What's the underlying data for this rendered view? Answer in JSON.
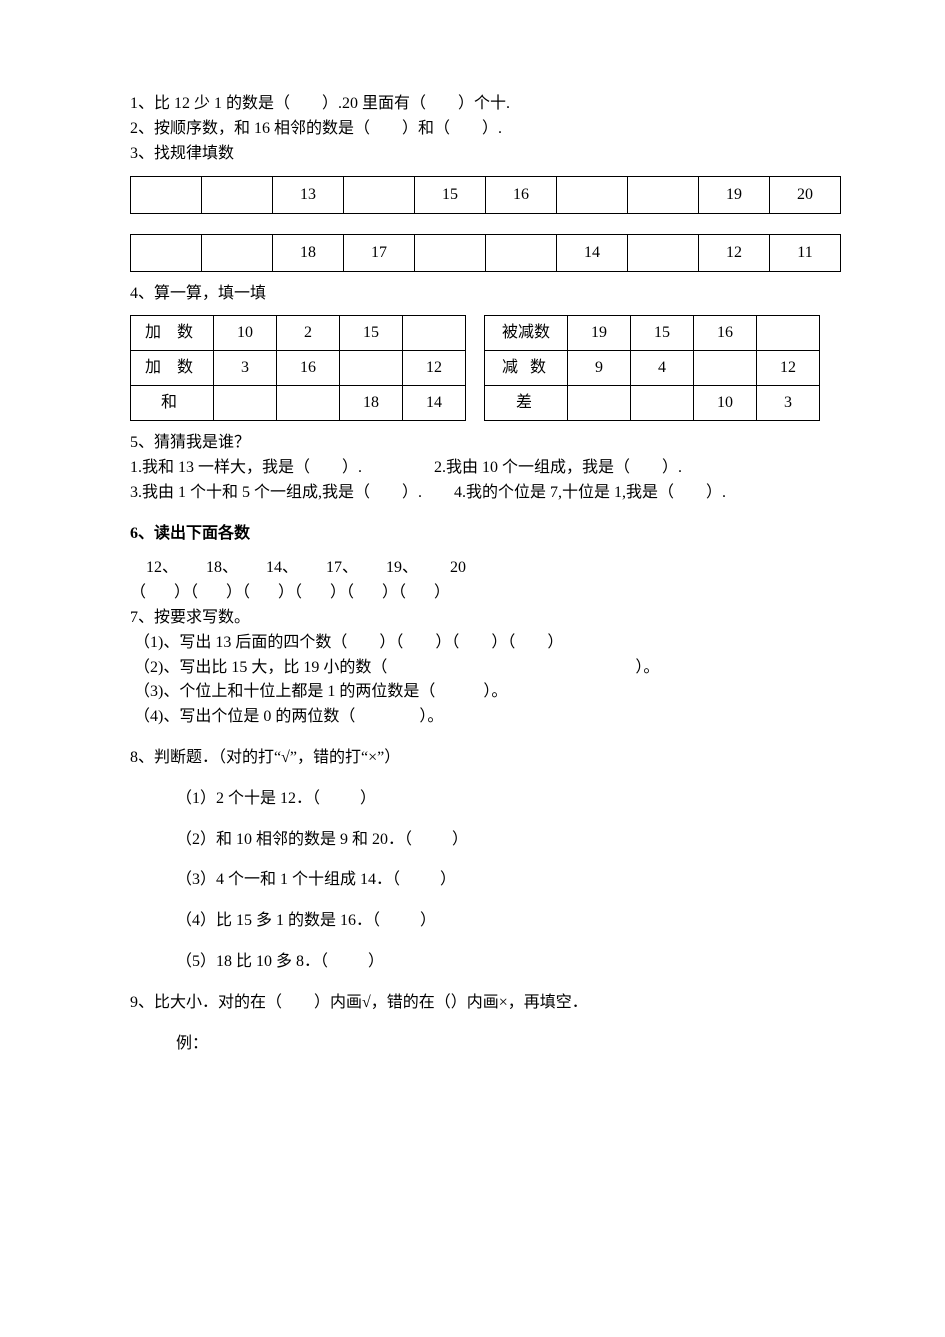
{
  "q1": "1、比 12 少 1 的数是（　　）.20 里面有（　　）个十.",
  "q2": "2、按顺序数，和 16 相邻的数是（　　）和（　　）.",
  "q3": "3、找规律填数",
  "seq1": [
    "",
    "",
    "13",
    "",
    "15",
    "16",
    "",
    "",
    "19",
    "20"
  ],
  "seq2": [
    "",
    "",
    "18",
    "17",
    "",
    "",
    "14",
    "",
    "12",
    "11"
  ],
  "q4": "4、算一算，填一填",
  "calcLeft": {
    "r0": [
      "加  数",
      "10",
      "2",
      "15",
      ""
    ],
    "r1": [
      "加  数",
      "3",
      "16",
      "",
      "12"
    ],
    "r2": [
      "和",
      "",
      "",
      "18",
      "14"
    ]
  },
  "calcRight": {
    "r0": [
      "被减数",
      "19",
      "15",
      "16",
      ""
    ],
    "r1": [
      "减  数",
      "9",
      "4",
      "",
      "12"
    ],
    "r2": [
      "差",
      "",
      "",
      "10",
      "3"
    ]
  },
  "q5": {
    "title": "5、猜猜我是谁？",
    "l1": "1.我和 13 一样大，我是（　　）.",
    "r1": "2.我由 10 个一组成，我是（　　）.",
    "l2": "3.我由 1 个十和 5 个一组成,我是（　　）.",
    "r2": "4.我的个位是 7,十位是 1,我是（　　）."
  },
  "q6": {
    "title": "6、读出下面各数",
    "nums": "    12、       18、       14、       17、       19、        20",
    "pars": "（       ）（       ）（       ）（       ）（       ）（       ）"
  },
  "q7": {
    "title": "7、按要求写数。",
    "a": "（1)、写出 13 后面的四个数（        ）（        ）（        ）（        ）",
    "b": "（2)、写出比 15 大，比 19 小的数（                                                              ）。",
    "c": "（3)、个位上和十位上都是 1 的两位数是（            ）。",
    "d": "（4)、写出个位是 0 的两位数（                ）。"
  },
  "q8": {
    "title": "8、判断题．（对的打“√”，错的打“×”）",
    "a": "（1）2 个十是 12．（          ）",
    "b": "（2）和 10 相邻的数是 9 和 20．（          ）",
    "c": "（3）4 个一和 1 个十组成 14．（          ）",
    "d": "（4）比 15 多 1 的数是 16．（          ）",
    "e": "（5）18 比 10 多 8．（          ）"
  },
  "q9": {
    "title": "9、比大小．对的在（        ）内画√，错的在（）内画×，再填空．",
    "ex": "例："
  }
}
